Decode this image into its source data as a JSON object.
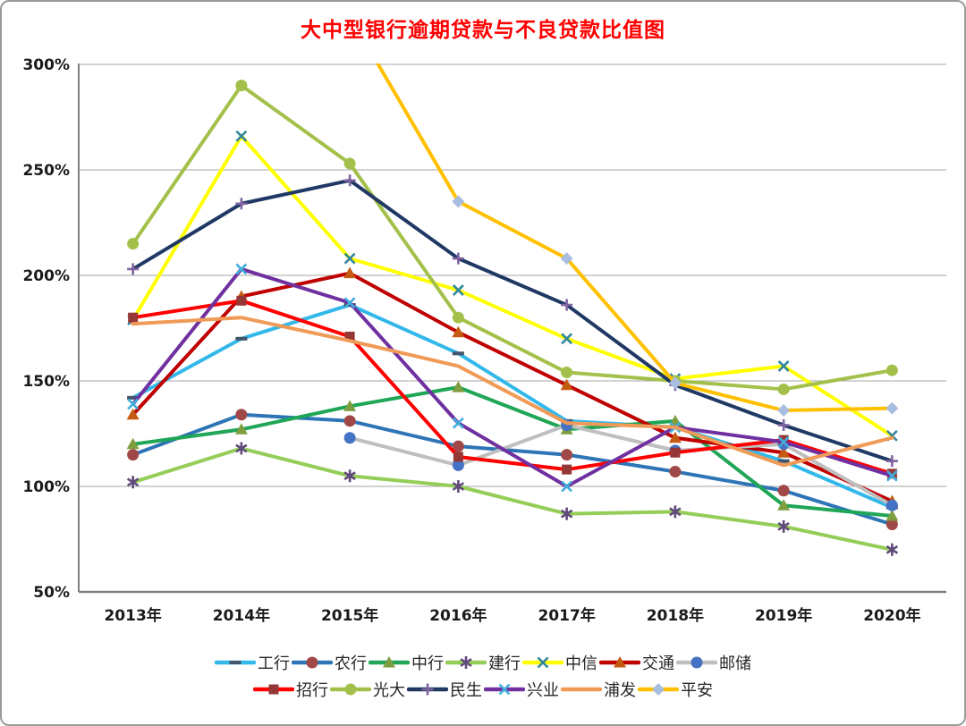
{
  "chart_data": {
    "type": "line",
    "title": "大中型银行逾期贷款与不良贷款比值图",
    "title_color": "#ff0000",
    "x": [
      "2013年",
      "2014年",
      "2015年",
      "2016年",
      "2017年",
      "2018年",
      "2019年",
      "2020年"
    ],
    "xlabel": "",
    "ylabel": "",
    "y_axis": {
      "min": 50,
      "max": 300,
      "step": 50,
      "tick_labels": [
        "50%",
        "100%",
        "150%",
        "200%",
        "250%",
        "300%"
      ],
      "unit": "percent"
    },
    "grid": true,
    "legend_position": "bottom",
    "legend_rows": [
      [
        "工行",
        "农行",
        "中行",
        "建行",
        "中信",
        "交通",
        "邮储"
      ],
      [
        "招行",
        "光大",
        "民生",
        "兴业",
        "浦发",
        "平安"
      ]
    ],
    "series": [
      {
        "name": "工行",
        "color": "#33b8ea",
        "marker": "dash",
        "marker_color": "#44546a",
        "values": [
          142,
          170,
          186,
          163,
          131,
          128,
          112,
          90
        ]
      },
      {
        "name": "农行",
        "color": "#2e75b6",
        "marker": "circle",
        "marker_color": "#a04747",
        "values": [
          115,
          134,
          131,
          119,
          115,
          107,
          98,
          82
        ]
      },
      {
        "name": "中行",
        "color": "#1fa656",
        "marker": "triangle",
        "marker_color": "#7e9e3f",
        "values": [
          120,
          127,
          138,
          147,
          127,
          131,
          91,
          86
        ]
      },
      {
        "name": "建行",
        "color": "#94ce58",
        "marker": "asterisk",
        "marker_color": "#604a7b",
        "values": [
          102,
          118,
          105,
          100,
          87,
          88,
          81,
          70
        ]
      },
      {
        "name": "中信",
        "color": "#ffff00",
        "marker": "x",
        "marker_color": "#31859c",
        "values": [
          179,
          266,
          208,
          193,
          170,
          151,
          157,
          124
        ]
      },
      {
        "name": "交通",
        "color": "#c00000",
        "marker": "triangle",
        "marker_color": "#c55a11",
        "values": [
          134,
          190,
          201,
          173,
          148,
          123,
          116,
          93
        ]
      },
      {
        "name": "邮储",
        "color": "#bfbfbf",
        "marker": "circle",
        "marker_color": "#4472c4",
        "values": [
          null,
          null,
          123,
          110,
          129,
          117,
          120,
          91
        ]
      },
      {
        "name": "招行",
        "color": "#ff0000",
        "marker": "square",
        "marker_color": "#953735",
        "values": [
          180,
          188,
          171,
          114,
          108,
          116,
          122,
          106
        ]
      },
      {
        "name": "光大",
        "color": "#a3c14a",
        "marker": "circle",
        "marker_color": "#a3c14a",
        "values": [
          215,
          290,
          253,
          180,
          154,
          150,
          146,
          155
        ]
      },
      {
        "name": "民生",
        "color": "#1f3864",
        "marker": "plus",
        "marker_color": "#8064a2",
        "values": [
          203,
          234,
          245,
          208,
          186,
          148,
          129,
          112
        ]
      },
      {
        "name": "兴业",
        "color": "#7030a0",
        "marker": "x",
        "marker_color": "#41aedd",
        "values": [
          139,
          203,
          187,
          130,
          100,
          128,
          121,
          105
        ]
      },
      {
        "name": "浦发",
        "color": "#f09a57",
        "marker": "none",
        "marker_color": "#f09a57",
        "values": [
          177,
          180,
          169,
          157,
          130,
          128,
          110,
          123
        ]
      },
      {
        "name": "平安",
        "color": "#ffc000",
        "marker": "diamond",
        "marker_color": "#a8bee0",
        "values": [
          null,
          null,
          323,
          235,
          208,
          149,
          136,
          137
        ]
      }
    ]
  }
}
